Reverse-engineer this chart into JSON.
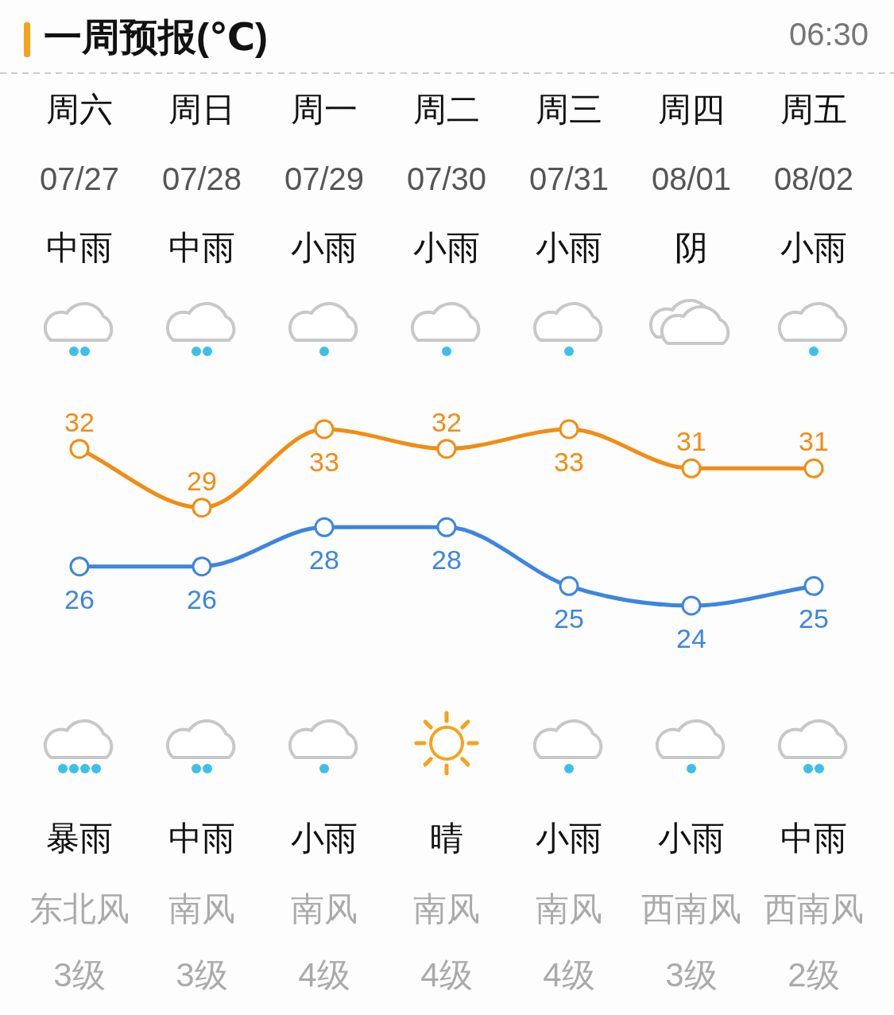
{
  "chart_data": {
    "type": "line",
    "title": "一周预报(℃)",
    "categories": [
      "周六",
      "周日",
      "周一",
      "周二",
      "周三",
      "周四",
      "周五"
    ],
    "series": [
      {
        "color": "#f28c12",
        "values": [
          32,
          29,
          33,
          32,
          33,
          31,
          31
        ]
      },
      {
        "color": "#3d85e0",
        "values": [
          26,
          26,
          28,
          28,
          25,
          24,
          25
        ]
      }
    ],
    "marker": "circle",
    "data_labels": true,
    "annotations": [
      "06:30",
      "07/27",
      "07/28",
      "07/29",
      "07/30",
      "07/31",
      "08/01",
      "08/02",
      "中雨",
      "中雨",
      "小雨",
      "小雨",
      "小雨",
      "阴",
      "小雨",
      "暴雨",
      "中雨",
      "小雨",
      "晴",
      "小雨",
      "小雨",
      "中雨",
      "东北风",
      "南风",
      "南风",
      "南风",
      "南风",
      "西南风",
      "西南风",
      "3级",
      "3级",
      "4级",
      "4级",
      "4级",
      "3级",
      "2级"
    ]
  }
}
